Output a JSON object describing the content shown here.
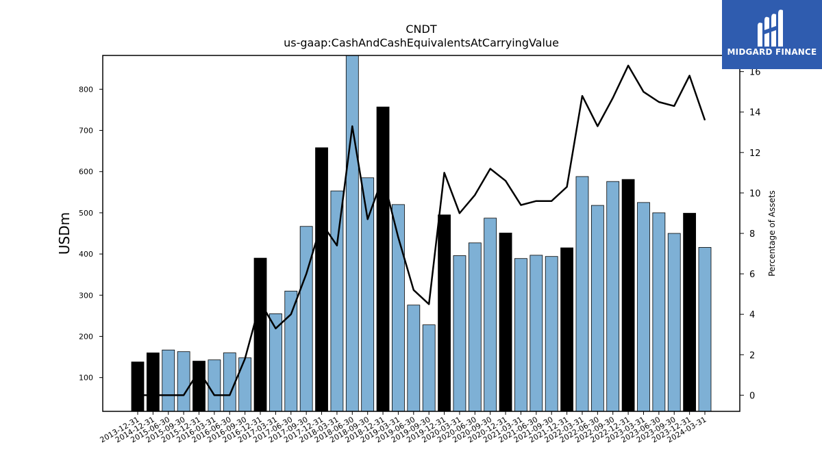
{
  "logo": {
    "text": "MIDGARD FINANCE"
  },
  "chart_data": {
    "type": "bar",
    "title": "CNDT",
    "subtitle": "us-gaap:CashAndCashEquivalentsAtCarryingValue",
    "ylabel": "USDm",
    "y2label": "Percentage of Assets",
    "ylim": [
      18,
      882
    ],
    "y2lim": [
      -0.8,
      16.8
    ],
    "yticks": [
      100,
      200,
      300,
      400,
      500,
      600,
      700,
      800
    ],
    "y2ticks": [
      0,
      2,
      4,
      6,
      8,
      10,
      12,
      14,
      16
    ],
    "grid": false,
    "colors": {
      "bar": "#7eb0d5",
      "bar_highlight": "#000000",
      "line": "#000000"
    },
    "categories": [
      "2013-12-31",
      "2014-12-31",
      "2015-06-30",
      "2015-09-30",
      "2015-12-31",
      "2016-03-31",
      "2016-06-30",
      "2016-09-30",
      "2016-12-31",
      "2017-03-31",
      "2017-06-30",
      "2017-09-30",
      "2017-12-31",
      "2018-03-31",
      "2018-06-30",
      "2018-09-30",
      "2018-12-31",
      "2019-03-31",
      "2019-06-30",
      "2019-09-30",
      "2019-12-31",
      "2020-03-31",
      "2020-06-30",
      "2020-09-30",
      "2020-12-31",
      "2021-03-31",
      "2021-06-30",
      "2021-09-30",
      "2021-12-31",
      "2022-03-31",
      "2022-06-30",
      "2022-09-30",
      "2022-12-31",
      "2023-03-31",
      "2023-06-30",
      "2023-09-30",
      "2023-12-31",
      "2024-03-31"
    ],
    "series": [
      {
        "values": [
          138,
          160,
          167,
          163,
          140,
          143,
          160,
          148,
          390,
          255,
          310,
          467,
          658,
          553,
          885,
          585,
          757,
          520,
          276,
          228,
          495,
          396,
          427,
          487,
          451,
          389,
          397,
          394,
          415,
          588,
          518,
          576,
          581,
          525,
          500,
          450,
          499,
          416
        ]
      },
      {
        "values": [
          0,
          0,
          0,
          0,
          1.2,
          0,
          0,
          1.8,
          4.6,
          3.3,
          4.0,
          6.0,
          8.5,
          7.4,
          13.3,
          8.7,
          10.8,
          7.8,
          5.2,
          4.5,
          11.0,
          9.0,
          9.9,
          11.2,
          10.6,
          9.4,
          9.6,
          9.6,
          10.3,
          14.8,
          13.3,
          14.7,
          16.3,
          15.0,
          14.5,
          14.3,
          15.8,
          13.6
        ]
      }
    ],
    "highlight_indices": [
      0,
      1,
      4,
      8,
      12,
      16,
      20,
      24,
      28,
      32,
      36
    ]
  }
}
